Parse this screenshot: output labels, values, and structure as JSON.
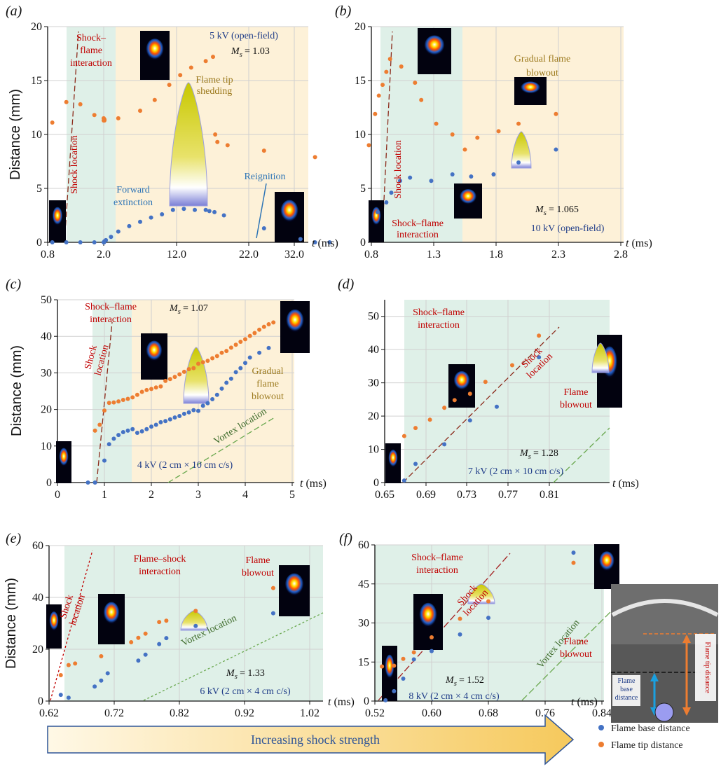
{
  "colors": {
    "base": "#4472c4",
    "tip": "#ed7d31",
    "interaction_shade": "#dff0e8",
    "blowout_shade": "#fdf1d8",
    "shock_line": "#8b2a1a",
    "vortex_line": "#6aa84f",
    "red_text": "#c00000",
    "blue_text": "#2e75b6",
    "navy_text": "#1f3c88",
    "gold_text": "#9c7a1e"
  },
  "shared": {
    "ylabel": "Distance (mm)",
    "xlabel_t": "t",
    "xlabel_unit": "(ms)"
  },
  "legend": {
    "base_label": "Flame base distance",
    "tip_label": "Flame tip distance"
  },
  "arrow_label": "Increasing shock strength",
  "inset": {
    "tip_label": "Flame tip distance",
    "base_label_line1": "Flame",
    "base_label_line2": "base",
    "base_label_line3": "distance"
  },
  "chart_data": [
    {
      "panel": "(a)",
      "type": "scatter",
      "x_ticks": [
        "0.8",
        "2.0",
        "12.0",
        "22.0",
        "32.0"
      ],
      "y_ticks": [
        "0",
        "5",
        "10",
        "15",
        "20"
      ],
      "ylim": [
        0,
        20
      ],
      "annotations": {
        "shock_flame": [
          "Shock–",
          "flame",
          "interaction"
        ],
        "shock_location": "Shock location",
        "condition": "5 kV (open-field)",
        "mach": "M",
        "mach_sub": "s",
        "mach_val": "= 1.03",
        "tip_shedding": [
          "Flame tip",
          "shedding"
        ],
        "forward_ext": [
          "Forward",
          "extinction"
        ],
        "reignition": "Reignition"
      },
      "tip": [
        [
          0.9,
          11.1
        ],
        [
          1.2,
          13.0
        ],
        [
          1.5,
          12.8
        ],
        [
          1.8,
          11.8
        ],
        [
          2.0,
          11.3
        ],
        [
          2.0,
          11.5
        ],
        [
          2.1,
          11.4
        ],
        [
          2.1,
          11.3
        ],
        [
          4,
          11.5
        ],
        [
          7,
          12.2
        ],
        [
          9,
          13.2
        ],
        [
          11,
          14.6
        ],
        [
          12.5,
          15.5
        ],
        [
          14,
          16.2
        ],
        [
          16,
          16.8
        ],
        [
          17,
          17.2
        ],
        [
          17.3,
          10.0
        ],
        [
          17.6,
          9.3
        ],
        [
          19,
          9.0
        ],
        [
          24,
          8.5
        ],
        [
          31,
          7.9
        ]
      ],
      "base": [
        [
          0.9,
          0
        ],
        [
          1.2,
          0
        ],
        [
          1.5,
          0
        ],
        [
          1.8,
          0
        ],
        [
          2.0,
          0
        ],
        [
          2.05,
          0
        ],
        [
          2.1,
          0.1
        ],
        [
          2.3,
          0.2
        ],
        [
          3,
          0.5
        ],
        [
          4,
          1.0
        ],
        [
          5.5,
          1.5
        ],
        [
          7,
          1.9
        ],
        [
          8.5,
          2.3
        ],
        [
          10,
          2.6
        ],
        [
          11.5,
          3.0
        ],
        [
          13,
          3.1
        ],
        [
          14.5,
          3.0
        ],
        [
          16,
          3.0
        ],
        [
          16.5,
          2.9
        ],
        [
          17.2,
          2.8
        ],
        [
          18.5,
          2.5
        ],
        [
          24,
          1.3
        ],
        [
          29,
          0.3
        ],
        [
          31,
          0
        ],
        [
          33,
          0
        ]
      ]
    },
    {
      "panel": "(b)",
      "type": "scatter",
      "x_ticks": [
        "0.8",
        "1.3",
        "1.8",
        "2.3",
        "2.8"
      ],
      "y_ticks": [
        "0",
        "5",
        "10",
        "15",
        "20"
      ],
      "ylim": [
        0,
        20
      ],
      "annotations": {
        "shock_location": "Shock location",
        "shock_flame": [
          "Shock–flame",
          "interaction"
        ],
        "blowout": [
          "Gradual flame",
          "blowout"
        ],
        "mach": "M",
        "mach_sub": "s",
        "mach_val": "= 1.065",
        "condition": "10 kV (open-field)"
      },
      "tip": [
        [
          0.78,
          9.0
        ],
        [
          0.83,
          11.9
        ],
        [
          0.86,
          13.6
        ],
        [
          0.89,
          14.6
        ],
        [
          0.92,
          15.8
        ],
        [
          0.95,
          17.0
        ],
        [
          1.04,
          16.3
        ],
        [
          1.15,
          14.8
        ],
        [
          1.2,
          13.2
        ],
        [
          1.32,
          11.0
        ],
        [
          1.45,
          10.0
        ],
        [
          1.55,
          8.6
        ],
        [
          1.65,
          9.7
        ],
        [
          1.82,
          10.3
        ],
        [
          1.98,
          11.0
        ],
        [
          2.28,
          11.9
        ]
      ],
      "base": [
        [
          0.85,
          2.8
        ],
        [
          0.92,
          3.7
        ],
        [
          0.96,
          4.6
        ],
        [
          1.03,
          5.7
        ],
        [
          1.11,
          6.0
        ],
        [
          1.28,
          5.7
        ],
        [
          1.45,
          6.3
        ],
        [
          1.6,
          6.1
        ],
        [
          1.78,
          6.3
        ],
        [
          1.98,
          7.4
        ],
        [
          2.28,
          8.6
        ]
      ]
    },
    {
      "panel": "(c)",
      "type": "scatter",
      "x_ticks": [
        "0",
        "1",
        "2",
        "3",
        "4",
        "5"
      ],
      "y_ticks": [
        "0",
        "10",
        "20",
        "30",
        "40",
        "50"
      ],
      "ylim": [
        0,
        50
      ],
      "annotations": {
        "shock_flame": [
          "Shock–flame",
          "interaction"
        ],
        "mach": "M",
        "mach_sub": "s",
        "mach_val": "= 1.07",
        "shock_location": [
          "Shock",
          "location"
        ],
        "blowout": [
          "Gradual",
          "flame",
          "blowout"
        ],
        "vortex": "Vortex location",
        "condition": "4 kV (2 cm × 10 cm c/s)"
      },
      "tip": [
        [
          0.8,
          14.2
        ],
        [
          0.9,
          15.8
        ],
        [
          1.0,
          19.7
        ],
        [
          1.1,
          21.8
        ],
        [
          1.2,
          21.9
        ],
        [
          1.3,
          22.2
        ],
        [
          1.4,
          22.6
        ],
        [
          1.5,
          22.9
        ],
        [
          1.6,
          23.3
        ],
        [
          1.7,
          24.0
        ],
        [
          1.8,
          24.8
        ],
        [
          1.9,
          25.3
        ],
        [
          2.0,
          25.6
        ],
        [
          2.1,
          26.0
        ],
        [
          2.2,
          26.3
        ],
        [
          2.3,
          27.8
        ],
        [
          2.4,
          28.3
        ],
        [
          2.5,
          28.9
        ],
        [
          2.6,
          29.6
        ],
        [
          2.7,
          30.3
        ],
        [
          2.8,
          31.0
        ],
        [
          2.9,
          31.3
        ],
        [
          3.0,
          32.5
        ],
        [
          3.1,
          32.9
        ],
        [
          3.2,
          33.3
        ],
        [
          3.3,
          34.0
        ],
        [
          3.4,
          34.6
        ],
        [
          3.5,
          35.5
        ],
        [
          3.6,
          36.0
        ],
        [
          3.7,
          36.9
        ],
        [
          3.8,
          37.7
        ],
        [
          3.9,
          38.5
        ],
        [
          4.0,
          39.2
        ],
        [
          4.1,
          40.1
        ],
        [
          4.2,
          40.9
        ],
        [
          4.3,
          41.8
        ],
        [
          4.4,
          42.6
        ],
        [
          4.5,
          43.3
        ],
        [
          4.6,
          43.8
        ]
      ],
      "base": [
        [
          0.65,
          0
        ],
        [
          0.8,
          0
        ],
        [
          1.0,
          6.0
        ],
        [
          1.1,
          10.5
        ],
        [
          1.2,
          12.0
        ],
        [
          1.3,
          13.0
        ],
        [
          1.4,
          13.8
        ],
        [
          1.5,
          14.2
        ],
        [
          1.6,
          14.6
        ],
        [
          1.7,
          13.6
        ],
        [
          1.8,
          14.0
        ],
        [
          1.9,
          14.6
        ],
        [
          2.0,
          15.3
        ],
        [
          2.1,
          15.8
        ],
        [
          2.2,
          16.5
        ],
        [
          2.3,
          16.8
        ],
        [
          2.4,
          17.3
        ],
        [
          2.5,
          17.8
        ],
        [
          2.6,
          18.2
        ],
        [
          2.7,
          18.8
        ],
        [
          2.8,
          19.2
        ],
        [
          2.9,
          19.8
        ],
        [
          3.0,
          19.6
        ],
        [
          3.1,
          21.0
        ],
        [
          3.2,
          21.7
        ],
        [
          3.3,
          22.8
        ],
        [
          3.4,
          24.0
        ],
        [
          3.5,
          25.7
        ],
        [
          3.6,
          27.3
        ],
        [
          3.7,
          28.4
        ],
        [
          3.8,
          30.2
        ],
        [
          3.9,
          31.3
        ],
        [
          4.0,
          32.7
        ],
        [
          4.1,
          34.2
        ],
        [
          4.3,
          35.5
        ],
        [
          4.5,
          36.8
        ]
      ]
    },
    {
      "panel": "(d)",
      "type": "scatter",
      "x_ticks": [
        "0.65",
        "0.69",
        "0.73",
        "0.77",
        "0.81"
      ],
      "y_ticks": [
        "0",
        "10",
        "20",
        "30",
        "40",
        "50"
      ],
      "ylim": [
        0,
        55
      ],
      "annotations": {
        "shock_flame": [
          "Shock–flame",
          "interaction"
        ],
        "shock_location": [
          "Shock",
          "location"
        ],
        "blowout": [
          "Flame",
          "blowout"
        ],
        "mach": "M",
        "mach_sub": "s",
        "mach_val": "= 1.28",
        "condition": "7 kV (2 cm × 10 cm c/s)"
      },
      "tip": [
        [
          0.669,
          14.0
        ],
        [
          0.68,
          16.4
        ],
        [
          0.694,
          18.9
        ],
        [
          0.708,
          22.5
        ],
        [
          0.718,
          24.8
        ],
        [
          0.733,
          26.7
        ],
        [
          0.748,
          30.3
        ],
        [
          0.774,
          35.3
        ],
        [
          0.8,
          44.2
        ]
      ],
      "base": [
        [
          0.669,
          0.6
        ],
        [
          0.68,
          5.6
        ],
        [
          0.708,
          11.5
        ],
        [
          0.733,
          18.7
        ],
        [
          0.759,
          22.8
        ],
        [
          0.8,
          37.7
        ]
      ]
    },
    {
      "panel": "(e)",
      "type": "scatter",
      "x_ticks": [
        "0.62",
        "0.72",
        "0.82",
        "0.92",
        "1.02"
      ],
      "y_ticks": [
        "0",
        "20",
        "40",
        "60"
      ],
      "ylim": [
        0,
        60
      ],
      "annotations": {
        "flame_shock": [
          "Flame–shock",
          "interaction"
        ],
        "shock_location": [
          "Shock",
          "location"
        ],
        "blowout": [
          "Flame",
          "blowout"
        ],
        "vortex": "Vortex location",
        "mach": "M",
        "mach_sub": "s",
        "mach_val": "= 1.33",
        "condition": "6 kV (2 cm × 4 cm c/s)"
      },
      "tip": [
        [
          0.638,
          10.0
        ],
        [
          0.65,
          13.9
        ],
        [
          0.66,
          14.5
        ],
        [
          0.7,
          17.3
        ],
        [
          0.746,
          22.7
        ],
        [
          0.757,
          24.4
        ],
        [
          0.768,
          26.0
        ],
        [
          0.789,
          30.5
        ],
        [
          0.8,
          31.0
        ],
        [
          0.845,
          34.8
        ],
        [
          0.964,
          43.6
        ]
      ],
      "base": [
        [
          0.638,
          2.4
        ],
        [
          0.65,
          1.3
        ],
        [
          0.69,
          5.6
        ],
        [
          0.7,
          7.9
        ],
        [
          0.71,
          10.7
        ],
        [
          0.757,
          15.6
        ],
        [
          0.768,
          17.9
        ],
        [
          0.789,
          22.0
        ],
        [
          0.8,
          24.3
        ],
        [
          0.845,
          29.0
        ],
        [
          0.964,
          33.9
        ]
      ]
    },
    {
      "panel": "(f)",
      "type": "scatter",
      "x_ticks": [
        "0.52",
        "0.60",
        "0.68",
        "0.76",
        "0.84"
      ],
      "y_ticks": [
        "0",
        "15",
        "30",
        "45",
        "60"
      ],
      "ylim": [
        0,
        60
      ],
      "annotations": {
        "shock_flame": [
          "Shock–flame",
          "interaction"
        ],
        "shock_location": [
          "Shock",
          "location"
        ],
        "blowout": [
          "Flame",
          "blowout"
        ],
        "vortex": "Vortex location",
        "mach": "M",
        "mach_sub": "s",
        "mach_val": "= 1.52",
        "condition": "8 kV (2 cm  × 4 cm c/s)"
      },
      "tip": [
        [
          0.53,
          13.3
        ],
        [
          0.547,
          13.6
        ],
        [
          0.56,
          16.2
        ],
        [
          0.575,
          18.7
        ],
        [
          0.6,
          24.5
        ],
        [
          0.64,
          31.6
        ],
        [
          0.68,
          38.3
        ],
        [
          0.8,
          53.1
        ]
      ],
      "base": [
        [
          0.535,
          0.3
        ],
        [
          0.547,
          3.8
        ],
        [
          0.56,
          8.6
        ],
        [
          0.575,
          16.0
        ],
        [
          0.6,
          19.2
        ],
        [
          0.64,
          25.6
        ],
        [
          0.68,
          32.0
        ],
        [
          0.8,
          57.0
        ]
      ]
    }
  ]
}
